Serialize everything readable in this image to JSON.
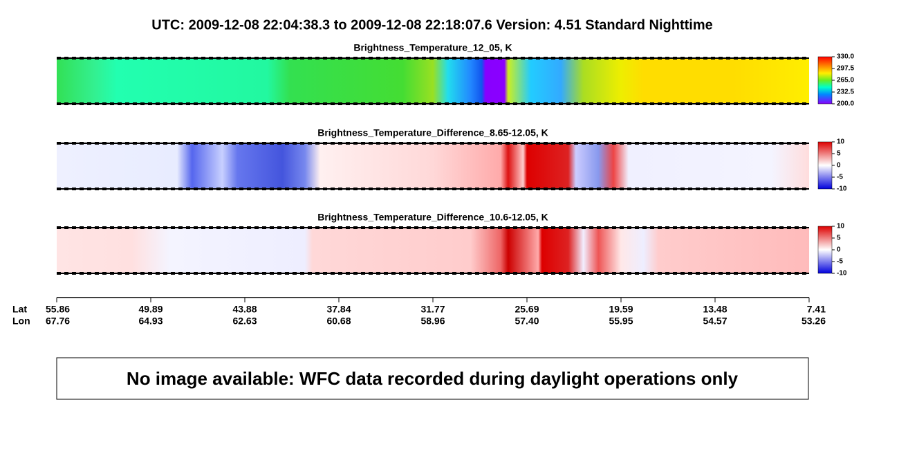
{
  "header": {
    "title": "UTC:  2009-12-08   22:04:38.3  to  2009-12-08   22:18:07.6    Version: 4.51  Standard Nighttime"
  },
  "panels": [
    {
      "title": "Brightness_Temperature_12_05, K",
      "colorbar_labels": [
        "330.0",
        "297.5",
        "265.0",
        "232.5",
        "200.0"
      ]
    },
    {
      "title": "Brightness_Temperature_Difference_8.65-12.05, K",
      "colorbar_labels": [
        "10",
        "5",
        "0",
        "-5",
        "-10"
      ]
    },
    {
      "title": "Brightness_Temperature_Difference_10.6-12.05, K",
      "colorbar_labels": [
        "10",
        "5",
        "0",
        "-5",
        "-10"
      ]
    }
  ],
  "axis": {
    "lat_label": "Lat",
    "lon_label": "Lon",
    "lat": [
      "55.86",
      "49.89",
      "43.88",
      "37.84",
      "31.77",
      "25.69",
      "19.59",
      "13.48",
      "7.41"
    ],
    "lon": [
      "67.76",
      "64.93",
      "62.63",
      "60.68",
      "58.96",
      "57.40",
      "55.95",
      "54.57",
      "53.26"
    ]
  },
  "message": "No image available: WFC data recorded during daylight operations only"
}
